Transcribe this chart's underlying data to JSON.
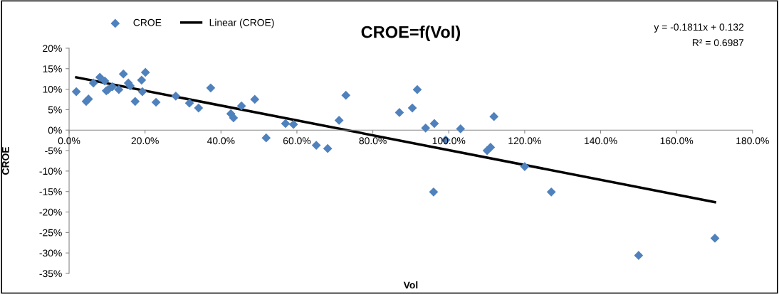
{
  "chart_data": {
    "type": "scatter",
    "title": "CROE=f(Vol)",
    "xlabel": "Vol",
    "ylabel": "CROE",
    "annotations": [
      "y = -0.1811x + 0.132",
      "R² = 0.6987"
    ],
    "xlim": [
      0,
      1.8
    ],
    "ylim": [
      -0.35,
      0.2
    ],
    "xticks": [
      {
        "value": 0,
        "label": "0.0%"
      },
      {
        "value": 0.2,
        "label": "20.0%"
      },
      {
        "value": 0.4,
        "label": "40.0%"
      },
      {
        "value": 0.6,
        "label": "60.0%"
      },
      {
        "value": 0.8,
        "label": "80.0%"
      },
      {
        "value": 1.0,
        "label": "100.0%"
      },
      {
        "value": 1.2,
        "label": "120.0%"
      },
      {
        "value": 1.4,
        "label": "140.0%"
      },
      {
        "value": 1.6,
        "label": "160.0%"
      },
      {
        "value": 1.8,
        "label": "180.0%"
      }
    ],
    "yticks": [
      {
        "value": -0.35,
        "label": "-35%"
      },
      {
        "value": -0.3,
        "label": "-30%"
      },
      {
        "value": -0.25,
        "label": "-25%"
      },
      {
        "value": -0.2,
        "label": "-20%"
      },
      {
        "value": -0.15,
        "label": "-15%"
      },
      {
        "value": -0.1,
        "label": "-10%"
      },
      {
        "value": -0.05,
        "label": "-5%"
      },
      {
        "value": 0,
        "label": "0%"
      },
      {
        "value": 0.05,
        "label": "5%"
      },
      {
        "value": 0.1,
        "label": "10%"
      },
      {
        "value": 0.15,
        "label": "15%"
      },
      {
        "value": 0.2,
        "label": "20%"
      }
    ],
    "grid": false,
    "legend": "top left",
    "marker": "diamond",
    "series": [
      {
        "name": "CROE",
        "color": "#4f81bd",
        "x": [
          0.019,
          0.045,
          0.051,
          0.064,
          0.081,
          0.094,
          0.098,
          0.103,
          0.114,
          0.131,
          0.143,
          0.156,
          0.161,
          0.174,
          0.191,
          0.193,
          0.201,
          0.229,
          0.281,
          0.317,
          0.341,
          0.373,
          0.426,
          0.433,
          0.454,
          0.489,
          0.519,
          0.57,
          0.591,
          0.651,
          0.681,
          0.711,
          0.729,
          0.87,
          0.904,
          0.917,
          0.939,
          0.962,
          0.96,
          0.992,
          1.031,
          1.101,
          1.11,
          1.119,
          1.2,
          1.27,
          1.5,
          1.701
        ],
        "values": [
          0.094,
          0.07,
          0.076,
          0.115,
          0.129,
          0.12,
          0.096,
          0.099,
          0.106,
          0.099,
          0.137,
          0.115,
          0.108,
          0.07,
          0.122,
          0.094,
          0.141,
          0.068,
          0.083,
          0.066,
          0.054,
          0.103,
          0.04,
          0.03,
          0.059,
          0.075,
          -0.019,
          0.016,
          0.014,
          -0.037,
          -0.045,
          0.024,
          0.085,
          0.043,
          0.054,
          0.099,
          0.005,
          0.016,
          -0.151,
          -0.024,
          0.003,
          -0.05,
          -0.042,
          0.033,
          -0.089,
          -0.151,
          -0.306,
          -0.264
        ]
      },
      {
        "name": "Linear (CROE)",
        "type": "line",
        "color": "#000000",
        "marker": "none",
        "line_style": "solid",
        "x": [
          0.019,
          1.701
        ],
        "values": [
          0.129,
          -0.176
        ]
      }
    ]
  }
}
